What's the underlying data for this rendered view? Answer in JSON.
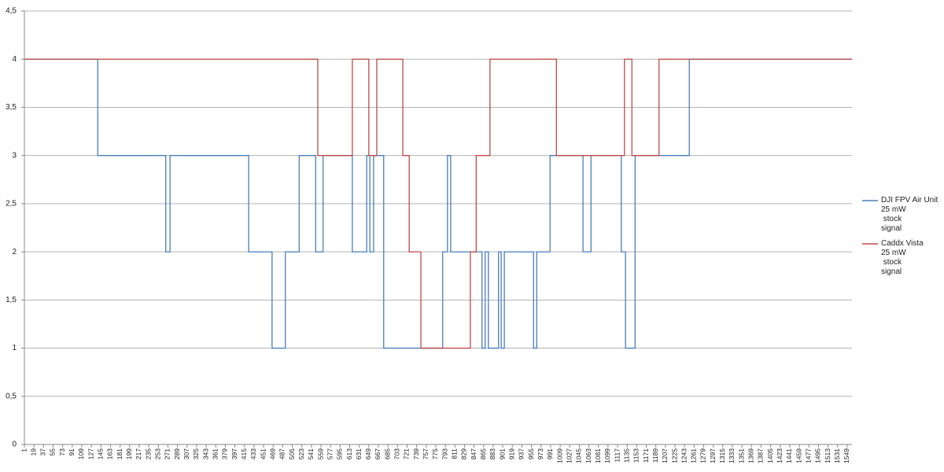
{
  "chart_data": {
    "type": "line",
    "step": "post",
    "x": [
      1,
      139,
      267,
      275,
      423,
      467,
      492,
      518,
      549,
      553,
      563,
      618,
      645,
      649,
      651,
      658,
      660,
      664,
      677,
      713,
      725,
      747,
      788,
      797,
      803,
      840,
      848,
      851,
      862,
      868,
      874,
      877,
      893,
      898,
      904,
      959,
      965,
      990,
      1002,
      1052,
      1067,
      1124,
      1130,
      1132,
      1144,
      1150,
      1195,
      1252,
      1558
    ],
    "series": [
      {
        "name": "DJI FPV Air Unit\n25 mW\n stock\nsignal",
        "color": "#4a7ebb",
        "values": [
          4,
          3,
          2,
          3,
          2,
          1,
          2,
          3,
          2,
          2,
          3,
          2,
          3,
          3,
          2,
          3,
          3,
          3,
          1,
          1,
          1,
          1,
          2,
          3,
          2,
          2,
          2,
          2,
          1,
          2,
          1,
          1,
          2,
          1,
          2,
          1,
          2,
          3,
          3,
          2,
          3,
          2,
          2,
          1,
          1,
          3,
          3,
          4,
          4
        ]
      },
      {
        "name": "Caddx Vista\n25 mW\n stock\nsignal",
        "color": "#be4b48",
        "values": [
          4,
          4,
          4,
          4,
          4,
          4,
          4,
          4,
          4,
          3,
          3,
          4,
          4,
          3,
          3,
          3,
          3,
          4,
          4,
          3,
          2,
          1,
          1,
          1,
          1,
          2,
          2,
          3,
          3,
          3,
          3,
          4,
          4,
          4,
          4,
          4,
          4,
          4,
          3,
          3,
          3,
          3,
          4,
          4,
          3,
          3,
          4,
          4,
          4
        ]
      }
    ],
    "xlim": [
      1,
      1558
    ],
    "xticks": [
      1,
      19,
      37,
      55,
      73,
      91,
      109,
      127,
      145,
      163,
      181,
      199,
      217,
      235,
      253,
      271,
      289,
      307,
      325,
      343,
      361,
      379,
      397,
      415,
      433,
      451,
      469,
      487,
      505,
      523,
      541,
      559,
      577,
      595,
      613,
      631,
      649,
      667,
      685,
      703,
      721,
      739,
      757,
      775,
      793,
      811,
      829,
      847,
      865,
      883,
      901,
      919,
      937,
      955,
      973,
      991,
      1009,
      1027,
      1045,
      1063,
      1081,
      1099,
      1117,
      1135,
      1153,
      1171,
      1189,
      1207,
      1225,
      1243,
      1261,
      1279,
      1297,
      1315,
      1333,
      1351,
      1369,
      1387,
      1405,
      1423,
      1441,
      1459,
      1477,
      1495,
      1513,
      1531,
      1549
    ],
    "ylim": [
      0,
      4.5
    ],
    "yticks": [
      0,
      {
        "value": 0.5,
        "label": "0,5"
      },
      1,
      {
        "value": 1.5,
        "label": "1,5"
      },
      2,
      {
        "value": 2.5,
        "label": "2,5"
      },
      3,
      {
        "value": 3.5,
        "label": "3,5"
      },
      4,
      {
        "value": 4.5,
        "label": "4,5"
      }
    ],
    "grid": true,
    "legend": "right"
  }
}
